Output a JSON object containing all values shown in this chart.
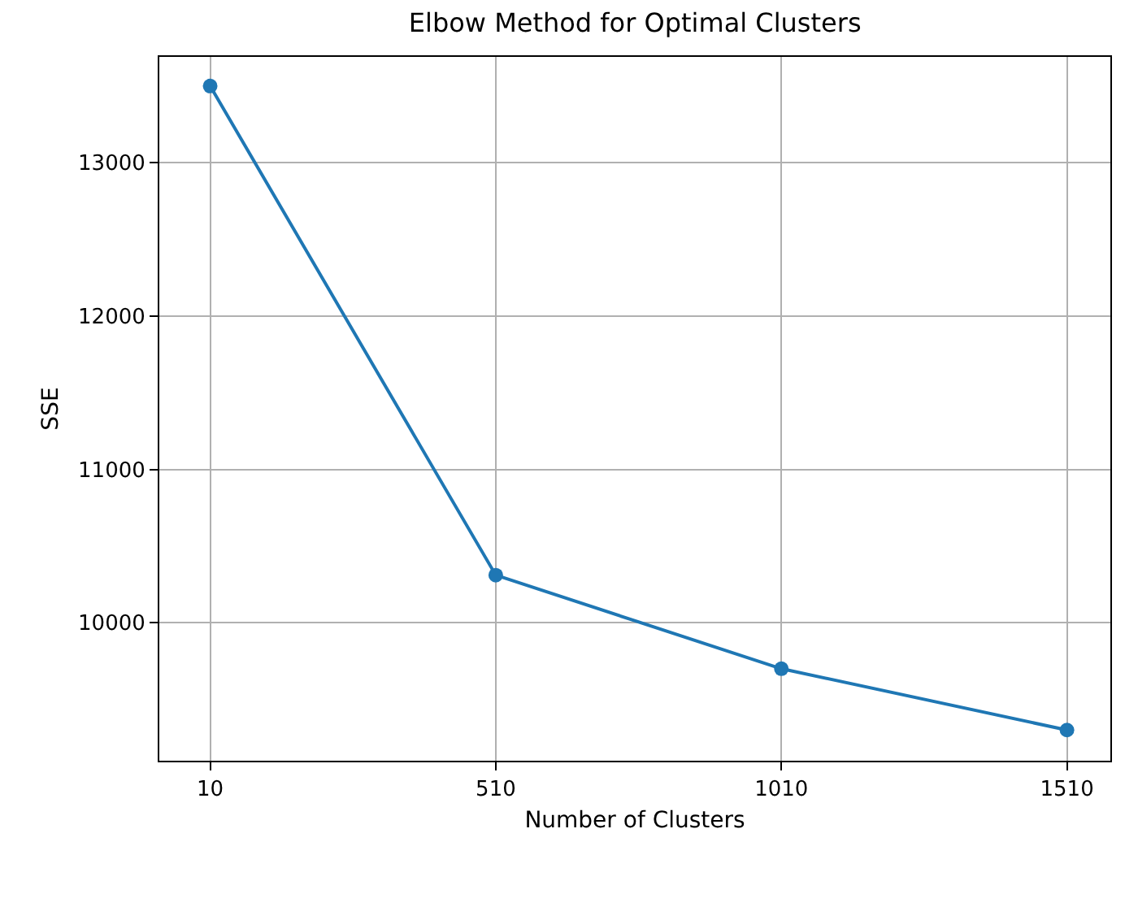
{
  "chart_data": {
    "type": "line",
    "title": "Elbow Method for Optimal Clusters",
    "xlabel": "Number of Clusters",
    "ylabel": "SSE",
    "x": [
      10,
      510,
      1010,
      1510
    ],
    "series": [
      {
        "color": "#1f77b4",
        "values": [
          13500,
          10310,
          9700,
          9300
        ]
      }
    ],
    "xlim": [
      -79,
      1586
    ],
    "xticks": [
      10,
      510,
      1010,
      1510
    ],
    "ylim": [
      9100,
      13690
    ],
    "yticks": [
      10000,
      11000,
      12000,
      13000
    ],
    "grid": true,
    "marker": "circle",
    "line_style": "solid"
  }
}
